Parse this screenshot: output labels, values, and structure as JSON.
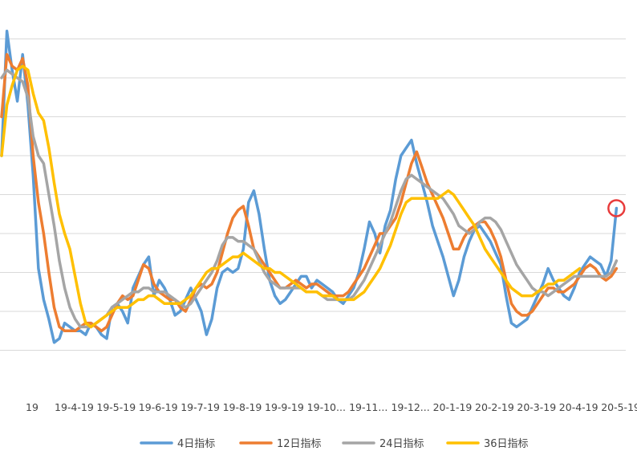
{
  "chart_data": {
    "type": "line",
    "title": "",
    "xlabel": "",
    "ylabel": "",
    "grid": true,
    "legend_position": "bottom",
    "x_tick_labels": [
      "19",
      "19-4-19",
      "19-5-19",
      "19-6-19",
      "19-7-19",
      "19-8-19",
      "19-9-19",
      "19-10...",
      "19-11...",
      "19-12...",
      "20-1-19",
      "20-2-19",
      "20-3-19",
      "20-4-19",
      "20-5-19"
    ],
    "x_tick_index": [
      0,
      8,
      16,
      24,
      32,
      40,
      48,
      56,
      64,
      72,
      80,
      88,
      96,
      104,
      112
    ],
    "ylim": [
      0,
      10
    ],
    "marker": {
      "index": 117,
      "value": 4.65,
      "shape": "circle",
      "color": "#e83b3b"
    },
    "series": [
      {
        "name": "4日指标",
        "color": "#5b9bd5",
        "values": [
          6.0,
          9.2,
          8.2,
          7.4,
          8.6,
          7.3,
          5.5,
          3.1,
          2.3,
          1.8,
          1.2,
          1.3,
          1.7,
          1.6,
          1.5,
          1.5,
          1.4,
          1.7,
          1.6,
          1.4,
          1.3,
          2.1,
          2.2,
          2.0,
          1.7,
          2.6,
          2.9,
          3.2,
          3.4,
          2.4,
          2.8,
          2.6,
          2.3,
          1.9,
          2.0,
          2.3,
          2.6,
          2.3,
          2.0,
          1.4,
          1.8,
          2.6,
          3.0,
          3.1,
          3.0,
          3.1,
          3.6,
          4.8,
          5.1,
          4.5,
          3.6,
          2.8,
          2.4,
          2.2,
          2.3,
          2.5,
          2.7,
          2.9,
          2.9,
          2.6,
          2.8,
          2.7,
          2.6,
          2.5,
          2.3,
          2.2,
          2.4,
          2.6,
          3.0,
          3.6,
          4.3,
          4.0,
          3.5,
          4.2,
          4.6,
          5.4,
          6.0,
          6.2,
          6.4,
          5.8,
          5.3,
          4.8,
          4.2,
          3.8,
          3.4,
          2.9,
          2.4,
          2.8,
          3.4,
          3.8,
          4.1,
          4.2,
          4.0,
          3.8,
          3.5,
          3.2,
          2.4,
          1.7,
          1.6,
          1.7,
          1.8,
          2.1,
          2.4,
          2.7,
          3.1,
          2.8,
          2.6,
          2.4,
          2.3,
          2.6,
          3.0,
          3.2,
          3.4,
          3.3,
          3.2,
          2.9,
          3.3,
          4.65
        ]
      },
      {
        "name": "12日指标",
        "color": "#ed7d31",
        "values": [
          7.0,
          8.6,
          8.3,
          8.2,
          8.5,
          7.8,
          6.0,
          4.8,
          4.0,
          3.0,
          2.1,
          1.6,
          1.5,
          1.5,
          1.5,
          1.6,
          1.7,
          1.7,
          1.6,
          1.5,
          1.6,
          1.9,
          2.2,
          2.4,
          2.3,
          2.4,
          2.8,
          3.2,
          3.1,
          2.7,
          2.5,
          2.4,
          2.3,
          2.3,
          2.1,
          2.0,
          2.3,
          2.6,
          2.7,
          2.6,
          2.7,
          3.0,
          3.5,
          4.0,
          4.4,
          4.6,
          4.7,
          4.2,
          3.6,
          3.4,
          3.2,
          3.0,
          2.8,
          2.6,
          2.6,
          2.7,
          2.8,
          2.7,
          2.6,
          2.7,
          2.7,
          2.6,
          2.5,
          2.4,
          2.4,
          2.4,
          2.5,
          2.7,
          2.9,
          3.1,
          3.4,
          3.7,
          4.0,
          4.0,
          4.2,
          4.4,
          4.8,
          5.3,
          5.8,
          6.1,
          5.7,
          5.3,
          5.0,
          4.7,
          4.4,
          4.0,
          3.6,
          3.6,
          3.9,
          4.1,
          4.2,
          4.3,
          4.3,
          4.1,
          3.8,
          3.4,
          2.8,
          2.2,
          2.0,
          1.9,
          1.9,
          2.0,
          2.2,
          2.4,
          2.6,
          2.6,
          2.5,
          2.5,
          2.6,
          2.7,
          2.9,
          3.1,
          3.2,
          3.1,
          2.9,
          2.8,
          2.9,
          3.1
        ]
      },
      {
        "name": "24日指标",
        "color": "#a5a5a5",
        "values": [
          8.0,
          8.2,
          8.1,
          8.0,
          7.9,
          7.5,
          6.5,
          6.0,
          5.8,
          5.0,
          4.2,
          3.3,
          2.6,
          2.1,
          1.8,
          1.6,
          1.6,
          1.6,
          1.7,
          1.8,
          1.9,
          2.1,
          2.2,
          2.3,
          2.4,
          2.5,
          2.5,
          2.6,
          2.6,
          2.5,
          2.5,
          2.5,
          2.4,
          2.3,
          2.2,
          2.1,
          2.2,
          2.4,
          2.6,
          2.8,
          3.0,
          3.3,
          3.7,
          3.9,
          3.9,
          3.8,
          3.8,
          3.7,
          3.6,
          3.3,
          3.0,
          2.8,
          2.7,
          2.6,
          2.6,
          2.6,
          2.6,
          2.6,
          2.5,
          2.5,
          2.5,
          2.4,
          2.3,
          2.3,
          2.3,
          2.3,
          2.3,
          2.4,
          2.6,
          2.8,
          3.1,
          3.4,
          3.7,
          4.0,
          4.3,
          4.7,
          5.1,
          5.4,
          5.5,
          5.4,
          5.3,
          5.2,
          5.1,
          5.0,
          4.9,
          4.7,
          4.5,
          4.2,
          4.1,
          4.0,
          4.1,
          4.3,
          4.4,
          4.4,
          4.3,
          4.1,
          3.8,
          3.5,
          3.2,
          3.0,
          2.8,
          2.6,
          2.5,
          2.5,
          2.4,
          2.5,
          2.6,
          2.7,
          2.8,
          2.9,
          2.9,
          2.9,
          2.9,
          2.9,
          2.9,
          2.9,
          3.0,
          3.3
        ]
      },
      {
        "name": "36日指标",
        "color": "#ffc000",
        "values": [
          6.0,
          7.3,
          7.8,
          8.2,
          8.3,
          8.2,
          7.6,
          7.1,
          6.9,
          6.2,
          5.3,
          4.5,
          4.0,
          3.6,
          2.9,
          2.2,
          1.7,
          1.6,
          1.7,
          1.8,
          1.9,
          2.0,
          2.1,
          2.1,
          2.1,
          2.2,
          2.3,
          2.3,
          2.4,
          2.4,
          2.3,
          2.2,
          2.2,
          2.2,
          2.2,
          2.3,
          2.4,
          2.6,
          2.8,
          3.0,
          3.1,
          3.1,
          3.2,
          3.3,
          3.4,
          3.4,
          3.5,
          3.4,
          3.3,
          3.2,
          3.1,
          3.1,
          3.0,
          3.0,
          2.9,
          2.8,
          2.7,
          2.6,
          2.5,
          2.5,
          2.5,
          2.4,
          2.4,
          2.4,
          2.3,
          2.3,
          2.3,
          2.3,
          2.4,
          2.5,
          2.7,
          2.9,
          3.1,
          3.4,
          3.7,
          4.1,
          4.5,
          4.8,
          4.9,
          4.9,
          4.9,
          4.9,
          4.9,
          4.9,
          5.0,
          5.1,
          5.0,
          4.8,
          4.6,
          4.4,
          4.2,
          3.9,
          3.6,
          3.4,
          3.2,
          3.0,
          2.8,
          2.6,
          2.5,
          2.4,
          2.4,
          2.4,
          2.5,
          2.6,
          2.7,
          2.7,
          2.8,
          2.8,
          2.9,
          3.0,
          3.1
        ]
      }
    ]
  }
}
